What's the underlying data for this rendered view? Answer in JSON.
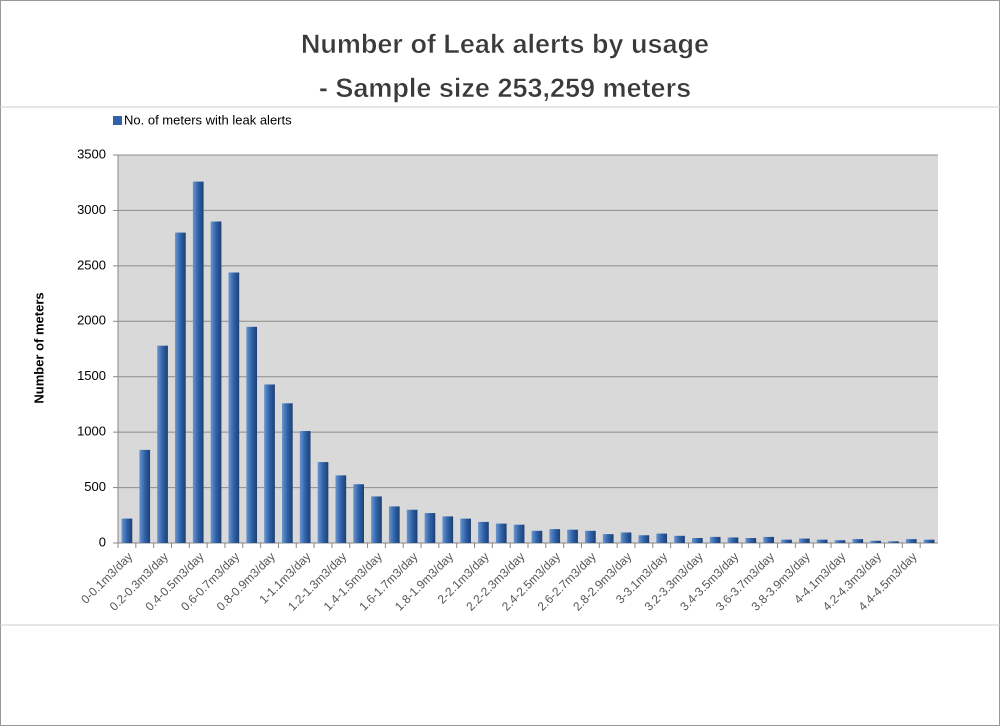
{
  "chart_data": {
    "type": "bar",
    "title": "Number of Leak alerts by usage",
    "subtitle": "- Sample size 253,259 meters",
    "y_label": "Number of meters",
    "legend": "top-left",
    "grid": true,
    "categories": [
      "0-0.1m3/day",
      null,
      "0.2-0.3m3/day",
      null,
      "0.4-0.5m3/day",
      null,
      "0.6-0.7m3/day",
      null,
      "0.8-0.9m3/day",
      null,
      "1-1.1m3/day",
      null,
      "1.2-1.3m3/day",
      null,
      "1.4-1.5m3/day",
      null,
      "1.6-1.7m3/day",
      null,
      "1.8-1.9m3/day",
      null,
      "2-2.1m3/day",
      null,
      "2.2-2.3m3/day",
      null,
      "2.4-2.5m3/day",
      null,
      "2.6-2.7m3/day",
      null,
      "2.8-2.9m3/day",
      null,
      "3-3.1m3/day",
      null,
      "3.2-3.3m3/day",
      null,
      "3.4-3.5m3/day",
      null,
      "3.6-3.7m3/day",
      null,
      "3.8-3.9m3/day",
      null,
      "4-4.1m3/day",
      null,
      "4.2-4.3m3/day",
      null,
      "4.4-4.5m3/day",
      null
    ],
    "series": [
      {
        "name": "No. of meters with leak alerts",
        "color": "#2f62a8",
        "values": [
          220,
          840,
          1780,
          2800,
          3260,
          2900,
          2440,
          1950,
          1430,
          1260,
          1010,
          730,
          610,
          530,
          420,
          330,
          300,
          270,
          240,
          220,
          190,
          175,
          165,
          110,
          125,
          120,
          110,
          80,
          95,
          70,
          85,
          65,
          45,
          55,
          50,
          45,
          55,
          30,
          40,
          30,
          25,
          35,
          20,
          15,
          35,
          30
        ]
      }
    ],
    "ylim": [
      0,
      3500
    ],
    "yticks": [
      0,
      500,
      1000,
      1500,
      2000,
      2500,
      3000,
      3500
    ]
  }
}
